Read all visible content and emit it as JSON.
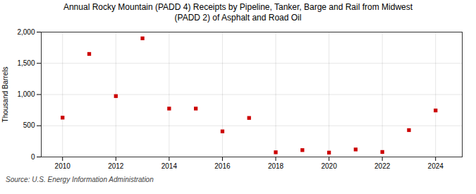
{
  "chart_data": {
    "type": "scatter",
    "title": "Annual Rocky Mountain (PADD 4) Receipts by Pipeline, Tanker, Barge and Rail from Midwest\n(PADD 2) of Asphalt and Road Oil",
    "ylabel": "Thousand Barrels",
    "source": "Source: U.S. Energy Information Administration",
    "x": [
      2010,
      2011,
      2012,
      2013,
      2014,
      2015,
      2016,
      2017,
      2018,
      2019,
      2020,
      2021,
      2022,
      2023,
      2024
    ],
    "values": [
      630,
      1650,
      975,
      1900,
      775,
      775,
      410,
      625,
      75,
      110,
      70,
      120,
      80,
      430,
      745
    ],
    "color": "#cc0000",
    "marker": "square",
    "xlim": [
      2009.2,
      2025.0
    ],
    "xticks": [
      2010,
      2012,
      2014,
      2016,
      2018,
      2020,
      2022,
      2024
    ],
    "ylim": [
      0,
      2000
    ],
    "yticks": [
      0,
      500,
      {
        "value": 1000,
        "label": "1,000"
      },
      {
        "value": 1500,
        "label": "1,500"
      },
      {
        "value": 2000,
        "label": "2,000"
      }
    ],
    "grid": true
  }
}
